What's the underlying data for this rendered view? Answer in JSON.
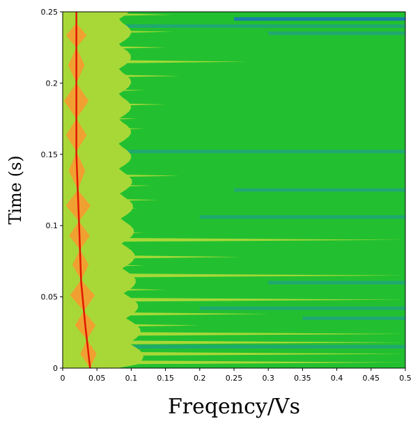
{
  "chart_data": {
    "type": "heatmap",
    "title": "",
    "xlabel": "Freqency/Vs",
    "ylabel": "Time (s)",
    "xlim": [
      0,
      0.5
    ],
    "ylim": [
      0,
      0.25
    ],
    "x_ticks": [
      0,
      0.05,
      0.1,
      0.15,
      0.2,
      0.25,
      0.3,
      0.35,
      0.4,
      0.45,
      0.5
    ],
    "x_tick_labels": [
      "0",
      "0.05",
      "0.1",
      "0.15",
      "0.2",
      "0.25",
      "0.3",
      "0.35",
      "0.4",
      "0.45",
      "0.5"
    ],
    "y_ticks": [
      0,
      0.05,
      0.1,
      0.15,
      0.2,
      0.25
    ],
    "y_tick_labels": [
      "0",
      "0.05",
      "0.1",
      "0.15",
      "0.2",
      "0.25"
    ],
    "grid": false,
    "legend": "none",
    "colors": {
      "peak": "#e01800",
      "high": "#f0a030",
      "mid": "#a8d838",
      "base": "#22c030",
      "low": "#20a870",
      "lowest": "#1880a8"
    },
    "ridge": {
      "description_points": [
        {
          "t": 0.0,
          "f": 0.04
        },
        {
          "t": 0.03,
          "f": 0.033
        },
        {
          "t": 0.06,
          "f": 0.027
        },
        {
          "t": 0.1,
          "f": 0.024
        },
        {
          "t": 0.15,
          "f": 0.02
        },
        {
          "t": 0.2,
          "f": 0.02
        },
        {
          "t": 0.25,
          "f": 0.02
        }
      ]
    },
    "nodes_t": [
      0.0,
      0.02,
      0.04,
      0.062,
      0.083,
      0.103,
      0.125,
      0.152,
      0.175,
      0.2,
      0.225,
      0.242
    ],
    "low_bands": [
      {
        "t": 0.152,
        "f0": 0.0,
        "f1": 0.5,
        "level": "low"
      },
      {
        "t": 0.24,
        "f0": 0.0,
        "f1": 0.5,
        "level": "low"
      },
      {
        "t": 0.245,
        "f0": 0.25,
        "f1": 0.5,
        "level": "lowest"
      },
      {
        "t": 0.235,
        "f0": 0.3,
        "f1": 0.5,
        "level": "low"
      },
      {
        "t": 0.125,
        "f0": 0.25,
        "f1": 0.5,
        "level": "low"
      },
      {
        "t": 0.106,
        "f0": 0.2,
        "f1": 0.5,
        "level": "low"
      },
      {
        "t": 0.06,
        "f0": 0.3,
        "f1": 0.5,
        "level": "low"
      },
      {
        "t": 0.042,
        "f0": 0.2,
        "f1": 0.5,
        "level": "low"
      },
      {
        "t": 0.035,
        "f0": 0.35,
        "f1": 0.5,
        "level": "low"
      },
      {
        "t": 0.015,
        "f0": 0.1,
        "f1": 0.5,
        "level": "low"
      }
    ],
    "mid_streaks_extent": [
      {
        "t": 0.248,
        "f": 0.16
      },
      {
        "t": 0.236,
        "f": 0.16
      },
      {
        "t": 0.225,
        "f": 0.15
      },
      {
        "t": 0.215,
        "f": 0.27
      },
      {
        "t": 0.205,
        "f": 0.17
      },
      {
        "t": 0.195,
        "f": 0.12
      },
      {
        "t": 0.185,
        "f": 0.15
      },
      {
        "t": 0.175,
        "f": 0.11
      },
      {
        "t": 0.168,
        "f": 0.12
      },
      {
        "t": 0.16,
        "f": 0.09
      },
      {
        "t": 0.145,
        "f": 0.1
      },
      {
        "t": 0.135,
        "f": 0.17
      },
      {
        "t": 0.128,
        "f": 0.13
      },
      {
        "t": 0.118,
        "f": 0.14
      },
      {
        "t": 0.112,
        "f": 0.11
      },
      {
        "t": 0.095,
        "f": 0.12
      },
      {
        "t": 0.09,
        "f": 0.5
      },
      {
        "t": 0.085,
        "f": 0.1
      },
      {
        "t": 0.078,
        "f": 0.26
      },
      {
        "t": 0.072,
        "f": 0.12
      },
      {
        "t": 0.065,
        "f": 0.5
      },
      {
        "t": 0.055,
        "f": 0.15
      },
      {
        "t": 0.048,
        "f": 0.5
      },
      {
        "t": 0.038,
        "f": 0.3
      },
      {
        "t": 0.03,
        "f": 0.2
      },
      {
        "t": 0.024,
        "f": 0.5
      },
      {
        "t": 0.018,
        "f": 0.5
      },
      {
        "t": 0.01,
        "f": 0.5
      },
      {
        "t": 0.004,
        "f": 0.5
      }
    ]
  }
}
